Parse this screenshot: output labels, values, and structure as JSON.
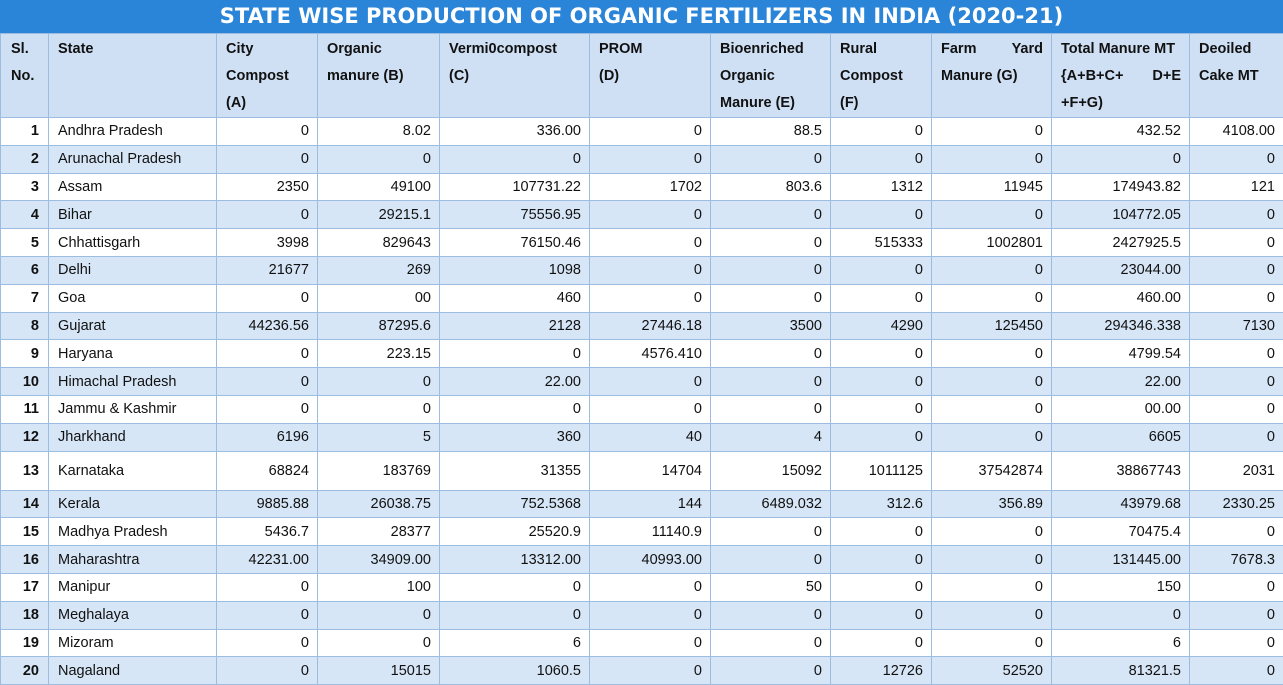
{
  "title": "STATE WISE PRODUCTION OF ORGANIC FERTILIZERS IN INDIA (2020-21)",
  "headers": {
    "sl": [
      "Sl.",
      "No."
    ],
    "state": [
      "State"
    ],
    "city_compost": [
      "City",
      "Compost",
      "(A)"
    ],
    "organic_manure": [
      "Organic",
      "manure (B)"
    ],
    "vermicompost": [
      "Vermi0compost",
      "(C)"
    ],
    "prom": [
      "PROM",
      "(D)"
    ],
    "bioenriched": [
      "Bioenriched",
      "Organic",
      "Manure (E)"
    ],
    "rural_compost": [
      "Rural",
      "Compost",
      "(F)"
    ],
    "farm_yard": [
      "Farm",
      "Yard",
      "Manure (G)"
    ],
    "total": [
      "Total Manure MT",
      "{A+B+C+",
      "D+E",
      "+F+G)"
    ],
    "deoiled": [
      "Deoiled",
      "Cake MT"
    ]
  },
  "rows": [
    [
      "1",
      "Andhra Pradesh",
      "0",
      "8.02",
      "336.00",
      "0",
      "88.5",
      "0",
      "0",
      "432.52",
      "4108.00"
    ],
    [
      "2",
      "Arunachal Pradesh",
      "0",
      "0",
      "0",
      "0",
      "0",
      "0",
      "0",
      "0",
      "0"
    ],
    [
      "3",
      "Assam",
      "2350",
      "49100",
      "107731.22",
      "1702",
      "803.6",
      "1312",
      "11945",
      "174943.82",
      "121"
    ],
    [
      "4",
      "Bihar",
      "0",
      "29215.1",
      "75556.95",
      "0",
      "0",
      "0",
      "0",
      "104772.05",
      "0"
    ],
    [
      "5",
      "Chhattisgarh",
      "3998",
      "829643",
      "76150.46",
      "0",
      "0",
      "515333",
      "1002801",
      "2427925.5",
      "0"
    ],
    [
      "6",
      "Delhi",
      "21677",
      "269",
      "1098",
      "0",
      "0",
      "0",
      "0",
      "23044.00",
      "0"
    ],
    [
      "7",
      "Goa",
      "0",
      "00",
      "460",
      "0",
      "0",
      "0",
      "0",
      "460.00",
      "0"
    ],
    [
      "8",
      "Gujarat",
      "44236.56",
      "87295.6",
      "2128",
      "27446.18",
      "3500",
      "4290",
      "125450",
      "294346.338",
      "7130"
    ],
    [
      "9",
      "Haryana",
      "0",
      "223.15",
      "0",
      "4576.410",
      "0",
      "0",
      "0",
      "4799.54",
      "0"
    ],
    [
      "10",
      "Himachal Pradesh",
      "0",
      "0",
      "22.00",
      "0",
      "0",
      "0",
      "0",
      "22.00",
      "0"
    ],
    [
      "11",
      "Jammu & Kashmir",
      "0",
      "0",
      "0",
      "0",
      "0",
      "0",
      "0",
      "00.00",
      "0"
    ],
    [
      "12",
      "Jharkhand",
      "6196",
      "5",
      "360",
      "40",
      "4",
      "0",
      "0",
      "6605",
      "0"
    ],
    [
      "13",
      "Karnataka",
      "68824",
      "183769",
      "31355",
      "14704",
      "15092",
      "1011125",
      "37542874",
      "38867743",
      "2031"
    ],
    [
      "14",
      "Kerala",
      "9885.88",
      "26038.75",
      "752.5368",
      "144",
      "6489.032",
      "312.6",
      "356.89",
      "43979.68",
      "2330.25"
    ],
    [
      "15",
      "Madhya Pradesh",
      "5436.7",
      "28377",
      "25520.9",
      "11140.9",
      "0",
      "0",
      "0",
      "70475.4",
      "0"
    ],
    [
      "16",
      "Maharashtra",
      "42231.00",
      "34909.00",
      "13312.00",
      "40993.00",
      "0",
      "0",
      "0",
      "131445.00",
      "7678.3"
    ],
    [
      "17",
      "Manipur",
      "0",
      "100",
      "0",
      "0",
      "50",
      "0",
      "0",
      "150",
      "0"
    ],
    [
      "18",
      "Meghalaya",
      "0",
      "0",
      "0",
      "0",
      "0",
      "0",
      "0",
      "0",
      "0"
    ],
    [
      "19",
      "Mizoram",
      "0",
      "0",
      "6",
      "0",
      "0",
      "0",
      "0",
      "6",
      "0"
    ],
    [
      "20",
      "Nagaland",
      "0",
      "15015",
      "1060.5",
      "0",
      "0",
      "12726",
      "52520",
      "81321.5",
      "0"
    ]
  ]
}
